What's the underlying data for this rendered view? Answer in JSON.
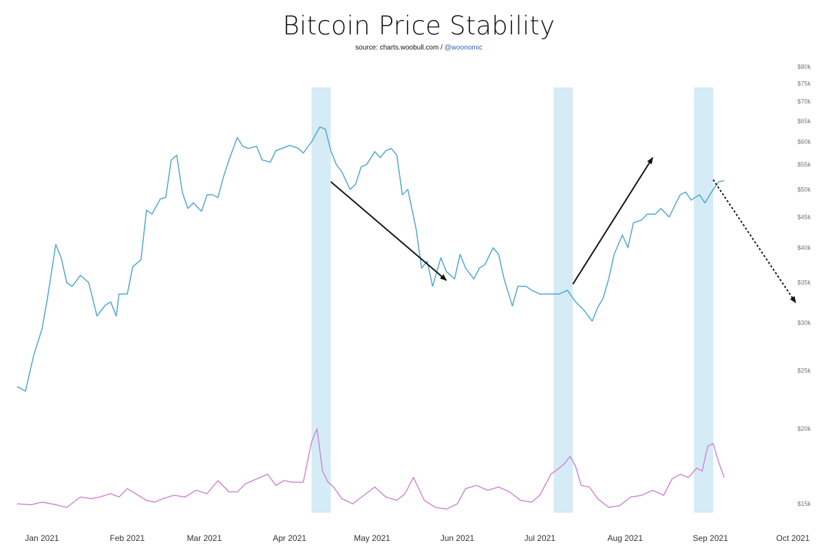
{
  "chart_data": {
    "type": "line",
    "title": "Bitcoin Price Stability",
    "source": {
      "prefix": "source: charts.woobull.com / ",
      "handle": "@woonomic"
    },
    "x_ticks": [
      "Jan 2021",
      "Feb 2021",
      "Mar 2021",
      "Apr 2021",
      "May 2021",
      "Jun 2021",
      "Jul 2021",
      "Aug 2021",
      "Sep 2021",
      "Oct 2021"
    ],
    "y_ticks": [
      "$15k",
      "$20k",
      "$25k",
      "$30k",
      "$35k",
      "$40k",
      "$45k",
      "$50k",
      "$55k",
      "$60k",
      "$65k",
      "$70k",
      "$75k",
      "$80k"
    ],
    "y_scale": "log",
    "ylim": [
      14500,
      80000
    ],
    "xlim": [
      "2020-12-23",
      "2021-10-06"
    ],
    "colors": {
      "price": "#4fa6cf",
      "stability": "#cf86d6",
      "highlight": "#d5ebf6",
      "arrow": "#111111"
    },
    "highlights": [
      {
        "start": "2021-04-09",
        "end": "2021-04-16"
      },
      {
        "start": "2021-07-06",
        "end": "2021-07-13"
      },
      {
        "start": "2021-08-26",
        "end": "2021-09-02"
      }
    ],
    "series": [
      {
        "role": "price",
        "x": [
          "2020-12-23",
          "2020-12-26",
          "2020-12-29",
          "2021-01-01",
          "2021-01-03",
          "2021-01-06",
          "2021-01-08",
          "2021-01-10",
          "2021-01-12",
          "2021-01-15",
          "2021-01-18",
          "2021-01-21",
          "2021-01-24",
          "2021-01-26",
          "2021-01-28",
          "2021-01-29",
          "2021-02-01",
          "2021-02-03",
          "2021-02-06",
          "2021-02-08",
          "2021-02-10",
          "2021-02-13",
          "2021-02-15",
          "2021-02-17",
          "2021-02-19",
          "2021-02-21",
          "2021-02-23",
          "2021-02-25",
          "2021-02-28",
          "2021-03-02",
          "2021-03-04",
          "2021-03-06",
          "2021-03-08",
          "2021-03-10",
          "2021-03-13",
          "2021-03-15",
          "2021-03-17",
          "2021-03-20",
          "2021-03-22",
          "2021-03-25",
          "2021-03-27",
          "2021-03-30",
          "2021-04-01",
          "2021-04-04",
          "2021-04-06",
          "2021-04-09",
          "2021-04-12",
          "2021-04-14",
          "2021-04-16",
          "2021-04-18",
          "2021-04-20",
          "2021-04-23",
          "2021-04-25",
          "2021-04-27",
          "2021-04-29",
          "2021-05-02",
          "2021-05-04",
          "2021-05-06",
          "2021-05-08",
          "2021-05-10",
          "2021-05-12",
          "2021-05-14",
          "2021-05-17",
          "2021-05-19",
          "2021-05-21",
          "2021-05-23",
          "2021-05-26",
          "2021-05-28",
          "2021-05-31",
          "2021-06-02",
          "2021-06-04",
          "2021-06-07",
          "2021-06-09",
          "2021-06-11",
          "2021-06-14",
          "2021-06-16",
          "2021-06-18",
          "2021-06-21",
          "2021-06-23",
          "2021-06-26",
          "2021-06-28",
          "2021-07-01",
          "2021-07-03",
          "2021-07-06",
          "2021-07-08",
          "2021-07-11",
          "2021-07-14",
          "2021-07-17",
          "2021-07-20",
          "2021-07-22",
          "2021-07-24",
          "2021-07-26",
          "2021-07-28",
          "2021-07-31",
          "2021-08-02",
          "2021-08-04",
          "2021-08-07",
          "2021-08-09",
          "2021-08-12",
          "2021-08-14",
          "2021-08-17",
          "2021-08-19",
          "2021-08-21",
          "2021-08-23",
          "2021-08-25",
          "2021-08-28",
          "2021-08-30",
          "2021-09-02",
          "2021-09-04",
          "2021-09-06"
        ],
        "values": [
          23500,
          23100,
          26500,
          29300,
          33000,
          40500,
          38500,
          35000,
          34500,
          36000,
          35000,
          30800,
          32100,
          32500,
          30800,
          33500,
          33500,
          37200,
          38200,
          46200,
          45500,
          48200,
          48500,
          56000,
          57000,
          49500,
          46500,
          47500,
          46000,
          49000,
          49000,
          48500,
          52500,
          56000,
          61000,
          59000,
          58500,
          59000,
          56000,
          55500,
          58000,
          58700,
          59200,
          58600,
          57500,
          60000,
          63500,
          63000,
          58000,
          55000,
          53500,
          50000,
          51000,
          54500,
          55000,
          57800,
          56500,
          58000,
          58500,
          57000,
          49000,
          50000,
          43000,
          37000,
          38000,
          34500,
          38500,
          36500,
          35500,
          39000,
          37000,
          35500,
          37000,
          37500,
          40000,
          39000,
          35500,
          32000,
          34500,
          34500,
          34000,
          33500,
          33500,
          33500,
          33500,
          34000,
          32500,
          31500,
          30200,
          31800,
          33000,
          35500,
          39000,
          42000,
          40000,
          44000,
          44500,
          45500,
          45500,
          46500,
          45000,
          47000,
          49000,
          49500,
          48000,
          49000,
          47500,
          50000,
          51500,
          51700
        ]
      },
      {
        "role": "stability",
        "x": [
          "2020-12-23",
          "2020-12-28",
          "2021-01-01",
          "2021-01-06",
          "2021-01-10",
          "2021-01-15",
          "2021-01-19",
          "2021-01-22",
          "2021-01-24",
          "2021-01-26",
          "2021-01-29",
          "2021-02-01",
          "2021-02-04",
          "2021-02-08",
          "2021-02-11",
          "2021-02-14",
          "2021-02-18",
          "2021-02-22",
          "2021-02-26",
          "2021-03-02",
          "2021-03-06",
          "2021-03-10",
          "2021-03-13",
          "2021-03-16",
          "2021-03-20",
          "2021-03-24",
          "2021-03-27",
          "2021-03-30",
          "2021-04-02",
          "2021-04-06",
          "2021-04-09",
          "2021-04-11",
          "2021-04-13",
          "2021-04-15",
          "2021-04-17",
          "2021-04-20",
          "2021-04-24",
          "2021-04-28",
          "2021-05-02",
          "2021-05-06",
          "2021-05-10",
          "2021-05-13",
          "2021-05-16",
          "2021-05-20",
          "2021-05-24",
          "2021-05-28",
          "2021-06-01",
          "2021-06-04",
          "2021-06-08",
          "2021-06-12",
          "2021-06-16",
          "2021-06-20",
          "2021-06-24",
          "2021-06-28",
          "2021-07-01",
          "2021-07-05",
          "2021-07-08",
          "2021-07-10",
          "2021-07-12",
          "2021-07-14",
          "2021-07-16",
          "2021-07-19",
          "2021-07-22",
          "2021-07-26",
          "2021-07-30",
          "2021-08-03",
          "2021-08-07",
          "2021-08-11",
          "2021-08-15",
          "2021-08-18",
          "2021-08-21",
          "2021-08-24",
          "2021-08-27",
          "2021-08-29",
          "2021-08-31",
          "2021-09-02",
          "2021-09-04",
          "2021-09-06"
        ],
        "values": [
          15000,
          14950,
          15100,
          14950,
          14800,
          15400,
          15300,
          15400,
          15500,
          15600,
          15400,
          15900,
          15600,
          15200,
          15100,
          15300,
          15500,
          15400,
          15800,
          15600,
          16400,
          15700,
          15700,
          16200,
          16500,
          16800,
          16100,
          16400,
          16300,
          16300,
          19000,
          20000,
          17000,
          16300,
          16000,
          15300,
          15000,
          15500,
          16000,
          15400,
          15200,
          15600,
          16600,
          15200,
          14800,
          14700,
          15000,
          15900,
          16100,
          15800,
          16000,
          15700,
          15200,
          15100,
          15500,
          16800,
          17200,
          17500,
          18000,
          17300,
          16100,
          16000,
          15300,
          14800,
          14900,
          15400,
          15500,
          15800,
          15500,
          16500,
          16800,
          16600,
          17200,
          17000,
          18700,
          18900,
          17600,
          16600
        ]
      }
    ],
    "annotations": [
      {
        "from": {
          "x": "2021-04-16",
          "y": 51500
        },
        "to": {
          "x": "2021-05-28",
          "y": 35300
        },
        "style": "solid"
      },
      {
        "from": {
          "x": "2021-07-13",
          "y": 34800
        },
        "to": {
          "x": "2021-08-11",
          "y": 56500
        },
        "style": "solid"
      },
      {
        "from": {
          "x": "2021-09-02",
          "y": 51900
        },
        "to": {
          "x": "2021-10-02",
          "y": 32400
        },
        "style": "dashed"
      }
    ],
    "grid": false,
    "legend": "none"
  }
}
